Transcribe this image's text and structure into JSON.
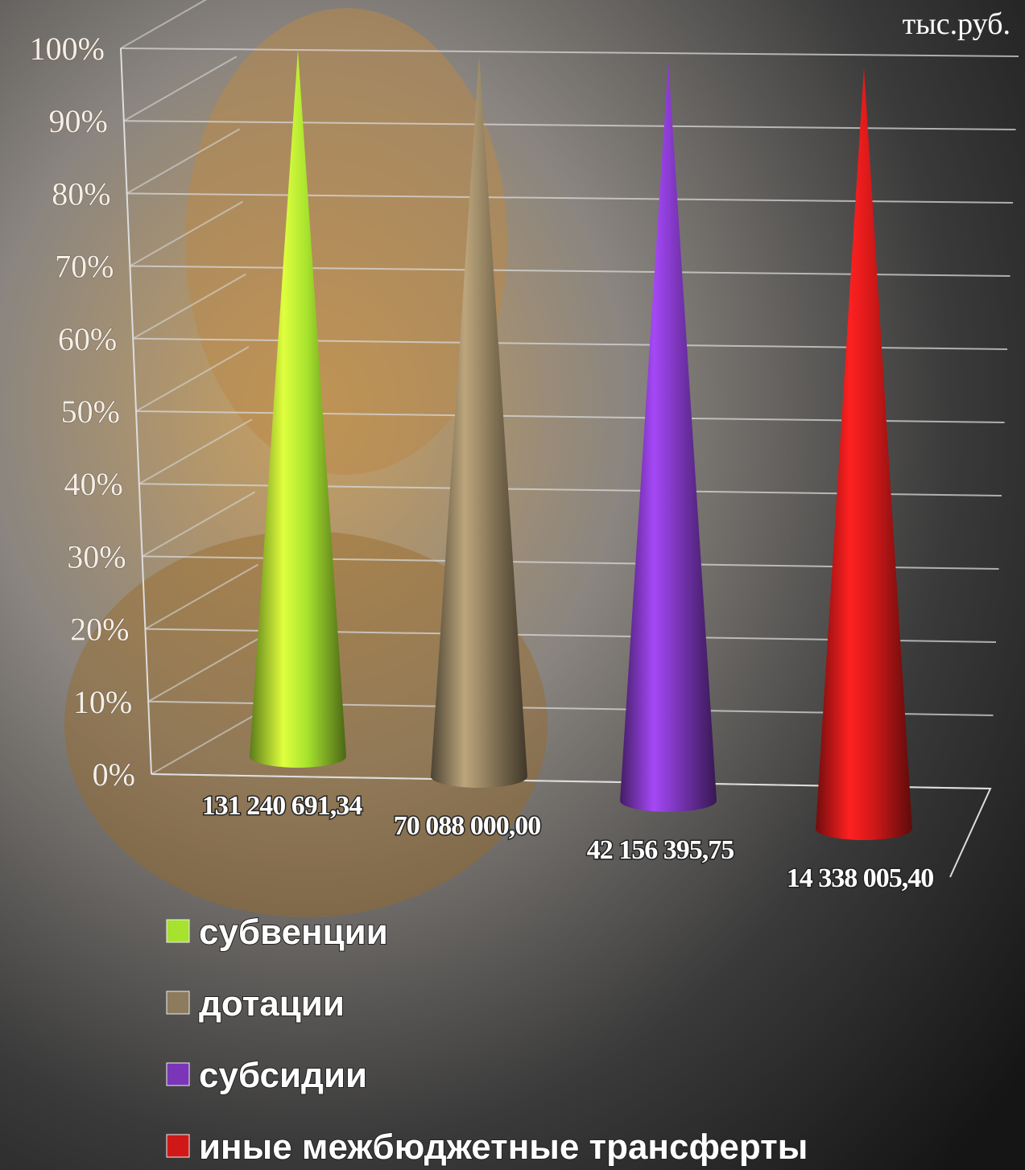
{
  "chart_data": {
    "type": "cone",
    "stacking": "percent",
    "unit_note": "тыс.руб.",
    "categories": [
      null,
      null,
      null,
      null
    ],
    "ylim": [
      0,
      100
    ],
    "yticks": [
      {
        "value": 0,
        "label": "0%"
      },
      {
        "value": 10,
        "label": "10%"
      },
      {
        "value": 20,
        "label": "20%"
      },
      {
        "value": 30,
        "label": "30%"
      },
      {
        "value": 40,
        "label": "40%"
      },
      {
        "value": 50,
        "label": "50%"
      },
      {
        "value": 60,
        "label": "60%"
      },
      {
        "value": 70,
        "label": "70%"
      },
      {
        "value": 80,
        "label": "80%"
      },
      {
        "value": 90,
        "label": "90%"
      },
      {
        "value": 100,
        "label": "100%"
      }
    ],
    "grid": true,
    "series": [
      {
        "name": "субвенции",
        "color": "#a6e22e",
        "values": [
          131240691.34,
          null,
          null,
          null
        ],
        "value_labels": [
          "131 240 691,34",
          null,
          null,
          null
        ]
      },
      {
        "name": "дотации",
        "color": "#8c7b5c",
        "values": [
          null,
          70088000.0,
          null,
          null
        ],
        "value_labels": [
          null,
          "70 088 000,00",
          null,
          null
        ]
      },
      {
        "name": "субсидии",
        "color": "#7a35b8",
        "values": [
          null,
          null,
          42156395.75,
          null
        ],
        "value_labels": [
          null,
          null,
          "42 156 395,75",
          null
        ]
      },
      {
        "name": "иные межбюджетные трансферты",
        "color": "#d01818",
        "values": [
          null,
          null,
          null,
          14338005.4
        ],
        "value_labels": [
          null,
          null,
          null,
          "14 338 005,40"
        ]
      }
    ]
  }
}
